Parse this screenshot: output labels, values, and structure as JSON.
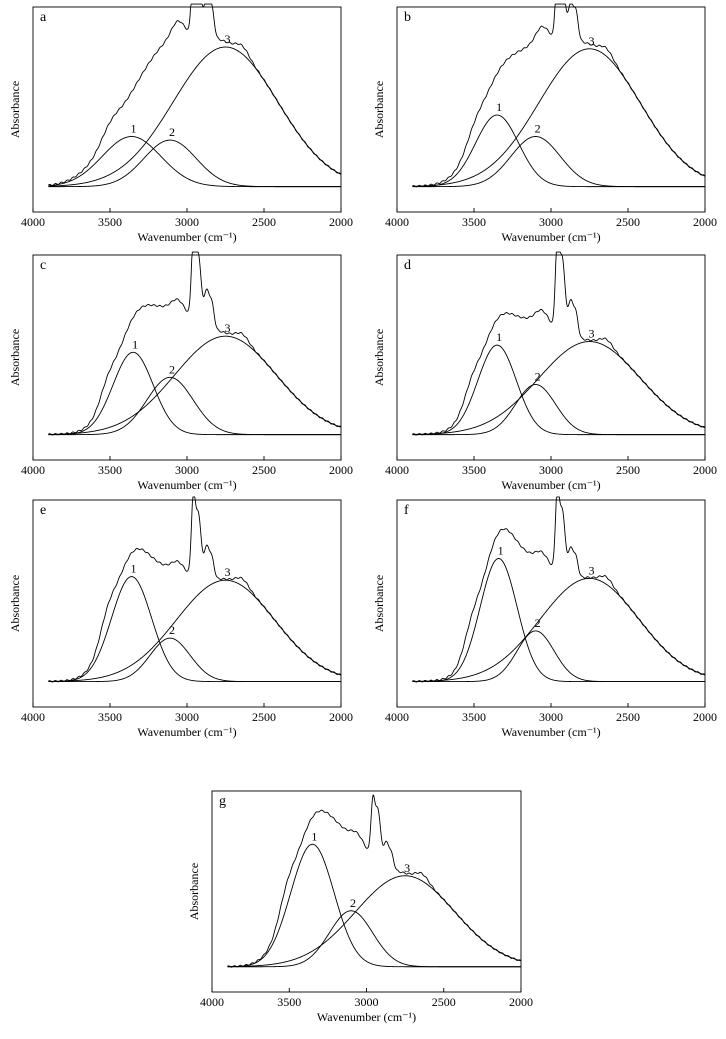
{
  "chart_data": [
    {
      "panel": "a",
      "type": "line",
      "xlabel": "Wavenumber (cm⁻¹)",
      "ylabel": "Absorbance",
      "xlim": [
        4000,
        2000
      ],
      "xticks": [
        4000,
        3500,
        3000,
        2500,
        2000
      ],
      "xdir": "reversed",
      "grid": false,
      "total": {
        "baseline": 0.03,
        "peaks": [
          [
            3500,
            0.06,
            60
          ],
          [
            3360,
            0.28,
            190
          ],
          [
            3110,
            0.26,
            170
          ],
          [
            2750,
            0.78,
            340
          ],
          [
            2960,
            0.35,
            12
          ],
          [
            2928,
            0.34,
            18
          ],
          [
            2870,
            0.22,
            20
          ],
          [
            2835,
            0.12,
            14
          ],
          [
            3060,
            0.08,
            40
          ],
          [
            2640,
            0.04,
            40
          ]
        ]
      },
      "components": [
        {
          "label": "1",
          "center": 3360,
          "height": 0.28,
          "width": 190
        },
        {
          "label": "2",
          "center": 3110,
          "height": 0.26,
          "width": 170
        },
        {
          "label": "3",
          "center": 2750,
          "height": 0.78,
          "width": 340
        }
      ]
    },
    {
      "panel": "b",
      "type": "line",
      "xlabel": "Wavenumber (cm⁻¹)",
      "ylabel": "Absorbance",
      "xlim": [
        4000,
        2000
      ],
      "xticks": [
        4000,
        3500,
        3000,
        2500,
        2000
      ],
      "xdir": "reversed",
      "grid": false,
      "total": {
        "baseline": 0.03,
        "peaks": [
          [
            3500,
            0.06,
            55
          ],
          [
            3350,
            0.4,
            140
          ],
          [
            3100,
            0.28,
            160
          ],
          [
            2750,
            0.77,
            330
          ],
          [
            2960,
            0.34,
            12
          ],
          [
            2928,
            0.33,
            18
          ],
          [
            2870,
            0.2,
            20
          ],
          [
            2835,
            0.12,
            14
          ],
          [
            3060,
            0.08,
            40
          ],
          [
            2640,
            0.04,
            40
          ]
        ]
      },
      "components": [
        {
          "label": "1",
          "center": 3350,
          "height": 0.4,
          "width": 140
        },
        {
          "label": "2",
          "center": 3100,
          "height": 0.28,
          "width": 160
        },
        {
          "label": "3",
          "center": 2750,
          "height": 0.77,
          "width": 330
        }
      ]
    },
    {
      "panel": "c",
      "type": "line",
      "xlabel": "Wavenumber (cm⁻¹)",
      "ylabel": "Absorbance",
      "xlim": [
        4000,
        2000
      ],
      "xticks": [
        4000,
        3500,
        3000,
        2500,
        2000
      ],
      "xdir": "reversed",
      "grid": false,
      "total": {
        "baseline": 0.03,
        "peaks": [
          [
            3520,
            0.08,
            50
          ],
          [
            3350,
            0.46,
            130
          ],
          [
            3110,
            0.32,
            150
          ],
          [
            2750,
            0.55,
            330
          ],
          [
            2960,
            0.4,
            12
          ],
          [
            2928,
            0.38,
            18
          ],
          [
            2870,
            0.2,
            20
          ],
          [
            2835,
            0.1,
            14
          ],
          [
            3060,
            0.06,
            40
          ],
          [
            2640,
            0.04,
            40
          ]
        ]
      },
      "components": [
        {
          "label": "1",
          "center": 3350,
          "height": 0.46,
          "width": 130
        },
        {
          "label": "2",
          "center": 3110,
          "height": 0.32,
          "width": 150
        },
        {
          "label": "3",
          "center": 2750,
          "height": 0.55,
          "width": 330
        }
      ]
    },
    {
      "panel": "d",
      "type": "line",
      "xlabel": "Wavenumber (cm⁻¹)",
      "ylabel": "Absorbance",
      "xlim": [
        4000,
        2000
      ],
      "xticks": [
        4000,
        3500,
        3000,
        2500,
        2000
      ],
      "xdir": "reversed",
      "grid": false,
      "total": {
        "baseline": 0.03,
        "peaks": [
          [
            3520,
            0.08,
            50
          ],
          [
            3350,
            0.5,
            125
          ],
          [
            3100,
            0.28,
            130
          ],
          [
            2750,
            0.52,
            330
          ],
          [
            2960,
            0.45,
            12
          ],
          [
            2928,
            0.42,
            18
          ],
          [
            2870,
            0.2,
            20
          ],
          [
            2835,
            0.1,
            14
          ],
          [
            3060,
            0.06,
            40
          ],
          [
            2640,
            0.04,
            40
          ]
        ]
      },
      "components": [
        {
          "label": "1",
          "center": 3350,
          "height": 0.5,
          "width": 125
        },
        {
          "label": "2",
          "center": 3100,
          "height": 0.28,
          "width": 130
        },
        {
          "label": "3",
          "center": 2750,
          "height": 0.52,
          "width": 330
        }
      ]
    },
    {
      "panel": "e",
      "type": "line",
      "xlabel": "Wavenumber (cm⁻¹)",
      "ylabel": "Absorbance",
      "xlim": [
        4000,
        2000
      ],
      "xticks": [
        4000,
        3500,
        3000,
        2500,
        2000
      ],
      "xdir": "reversed",
      "grid": false,
      "total": {
        "baseline": 0.03,
        "peaks": [
          [
            3520,
            0.1,
            50
          ],
          [
            3360,
            0.58,
            130
          ],
          [
            3110,
            0.24,
            130
          ],
          [
            2750,
            0.56,
            320
          ],
          [
            2960,
            0.4,
            12
          ],
          [
            2928,
            0.36,
            18
          ],
          [
            2870,
            0.18,
            20
          ],
          [
            2835,
            0.08,
            14
          ],
          [
            3060,
            0.05,
            40
          ],
          [
            2640,
            0.04,
            40
          ]
        ]
      },
      "components": [
        {
          "label": "1",
          "center": 3360,
          "height": 0.58,
          "width": 130
        },
        {
          "label": "2",
          "center": 3110,
          "height": 0.24,
          "width": 130
        },
        {
          "label": "3",
          "center": 2750,
          "height": 0.56,
          "width": 320
        }
      ]
    },
    {
      "panel": "f",
      "type": "line",
      "xlabel": "Wavenumber (cm⁻¹)",
      "ylabel": "Absorbance",
      "xlim": [
        4000,
        2000
      ],
      "xticks": [
        4000,
        3500,
        3000,
        2500,
        2000
      ],
      "xdir": "reversed",
      "grid": false,
      "total": {
        "baseline": 0.03,
        "peaks": [
          [
            3520,
            0.1,
            50
          ],
          [
            3340,
            0.68,
            120
          ],
          [
            3100,
            0.28,
            120
          ],
          [
            2750,
            0.57,
            320
          ],
          [
            2960,
            0.4,
            12
          ],
          [
            2928,
            0.36,
            18
          ],
          [
            2870,
            0.16,
            20
          ],
          [
            2835,
            0.08,
            14
          ],
          [
            3060,
            0.05,
            40
          ],
          [
            2640,
            0.04,
            40
          ]
        ]
      },
      "components": [
        {
          "label": "1",
          "center": 3340,
          "height": 0.68,
          "width": 120
        },
        {
          "label": "2",
          "center": 3100,
          "height": 0.28,
          "width": 120
        },
        {
          "label": "3",
          "center": 2750,
          "height": 0.57,
          "width": 320
        }
      ]
    },
    {
      "panel": "g",
      "type": "line",
      "xlabel": "Wavenumber (cm⁻¹)",
      "ylabel": "Absorbance",
      "xlim": [
        4000,
        2000
      ],
      "xticks": [
        4000,
        3500,
        3000,
        2500,
        2000
      ],
      "xdir": "reversed",
      "grid": false,
      "total": {
        "baseline": 0.03,
        "peaks": [
          [
            3520,
            0.1,
            50
          ],
          [
            3350,
            0.7,
            140
          ],
          [
            3100,
            0.32,
            140
          ],
          [
            2750,
            0.52,
            320
          ],
          [
            2960,
            0.28,
            12
          ],
          [
            2928,
            0.3,
            18
          ],
          [
            2870,
            0.14,
            20
          ],
          [
            2835,
            0.06,
            14
          ],
          [
            3060,
            0.05,
            40
          ],
          [
            2640,
            0.04,
            40
          ]
        ]
      },
      "components": [
        {
          "label": "1",
          "center": 3350,
          "height": 0.7,
          "width": 140
        },
        {
          "label": "2",
          "center": 3100,
          "height": 0.32,
          "width": 140
        },
        {
          "label": "3",
          "center": 2750,
          "height": 0.52,
          "width": 320
        }
      ]
    }
  ]
}
